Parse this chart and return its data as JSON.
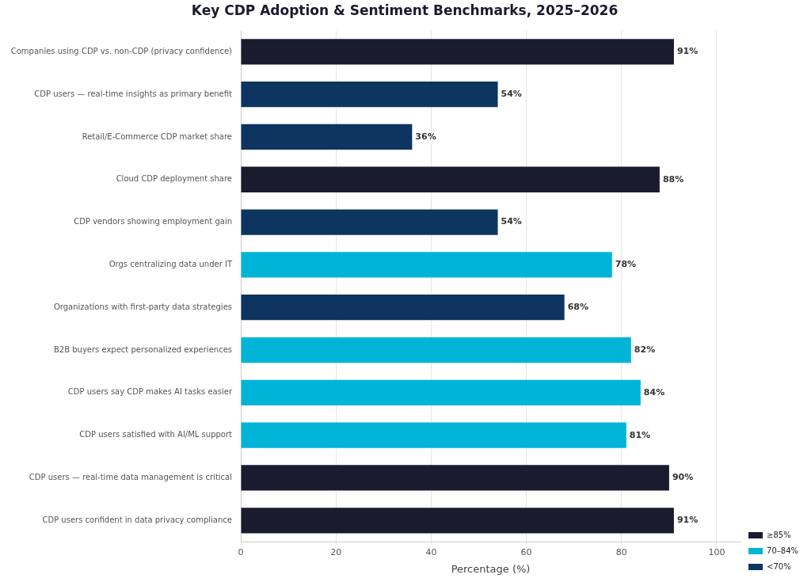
{
  "chart_data": {
    "type": "bar",
    "orientation": "horizontal",
    "stacked": true,
    "title": "Key CDP Adoption & Sentiment Benchmarks, 2025–2026",
    "xlabel": "Percentage (%)",
    "categories": [
      "Companies using CDP vs. non-CDP (privacy confidence)",
      "CDP users — real-time insights as primary benefit",
      "Retail/E-Commerce CDP market share",
      "Cloud CDP deployment share",
      "CDP vendors showing employment gain",
      "Orgs centralizing data under IT",
      "Organizations with first-party data strategies",
      "B2B buyers expect personalized experiences",
      "CDP users say CDP makes AI tasks easier",
      "CDP users satisfied with AI/ML support",
      "CDP users — real-time data management is critical",
      "CDP users confident in data privacy compliance"
    ],
    "series": [
      {
        "name": "≥85%",
        "color": "#1b1b2f",
        "values": [
          91,
          null,
          null,
          88,
          null,
          null,
          null,
          null,
          null,
          null,
          90,
          91
        ],
        "value_labels": [
          "91%",
          null,
          null,
          "88%",
          null,
          null,
          null,
          null,
          null,
          null,
          "90%",
          "91%"
        ]
      },
      {
        "name": "70–84%",
        "color": "#00b4d8",
        "values": [
          null,
          null,
          null,
          null,
          null,
          78,
          null,
          82,
          84,
          81,
          null,
          null
        ],
        "value_labels": [
          null,
          null,
          null,
          null,
          null,
          "78%",
          null,
          "82%",
          "84%",
          "81%",
          null,
          null
        ]
      },
      {
        "name": "<70%",
        "color": "#0e3460",
        "values": [
          null,
          54,
          36,
          null,
          54,
          null,
          68,
          null,
          null,
          null,
          null,
          null
        ],
        "value_labels": [
          null,
          "54%",
          "36%",
          null,
          "54%",
          null,
          "68%",
          null,
          null,
          null,
          null,
          null
        ]
      }
    ],
    "xlim": [
      0,
      105
    ],
    "xticks": [
      0,
      20,
      40,
      60,
      80,
      100
    ],
    "grid": "x",
    "legend": "bottom right"
  }
}
